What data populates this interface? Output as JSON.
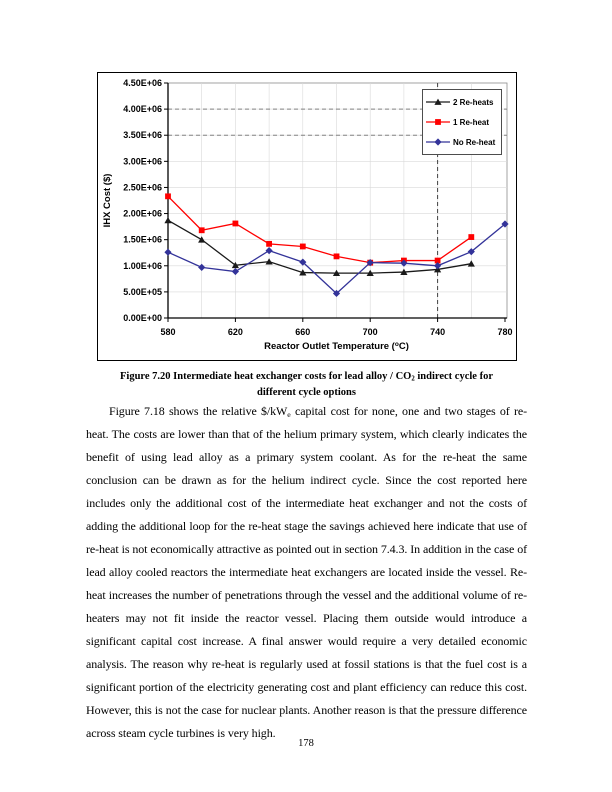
{
  "page": {
    "number": "178"
  },
  "figure": {
    "caption": {
      "line1_segments": [
        {
          "text": "Figure 7.20 Intermediate heat exchanger costs for lead alloy / CO"
        },
        {
          "text": "2",
          "sub": true
        },
        {
          "text": " indirect cycle for"
        }
      ],
      "line2": "different cycle options"
    }
  },
  "chart_data": {
    "type": "line",
    "title": "",
    "ylabel": "IHX Cost ($)",
    "xlabel_segments": [
      {
        "text": "Reactor Outlet Temperature ("
      },
      {
        "text": "o",
        "sup": true
      },
      {
        "text": "C)"
      }
    ],
    "xlim": [
      580,
      780
    ],
    "ylim": [
      0,
      4500000
    ],
    "x_major_ticks": [
      580,
      620,
      660,
      700,
      740,
      780
    ],
    "x_minor_grid_step": 20,
    "y_tick_step": 500000,
    "y_tick_labels": [
      "0.00E+00",
      "5.00E+05",
      "1.00E+06",
      "1.50E+06",
      "2.00E+06",
      "2.50E+06",
      "3.00E+06",
      "3.50E+06",
      "4.00E+06",
      "4.50E+06"
    ],
    "dashed_horizontal_lines": [
      3500000,
      4000000
    ],
    "dashed_vertical_lines": [
      740
    ],
    "grid": "light-minor-grid-plus-dashed-reference-lines",
    "legend_position": "top-right",
    "colors": {
      "grid_light": "#d9d9d9",
      "grid_dashed": "#808080",
      "axis": "#000000",
      "plot_border": "#8c8c8c"
    },
    "series": [
      {
        "name": "2 Re-heats",
        "color": "#1a1a1a",
        "marker": "triangle",
        "x": [
          580,
          600,
          620,
          640,
          660,
          680,
          700,
          720,
          740,
          760
        ],
        "values": [
          1870000,
          1500000,
          1010000,
          1080000,
          870000,
          860000,
          860000,
          880000,
          930000,
          1040000
        ]
      },
      {
        "name": "1 Re-heat",
        "color": "#ff0000",
        "marker": "square",
        "x": [
          580,
          600,
          620,
          640,
          660,
          680,
          700,
          720,
          740,
          760
        ],
        "values": [
          2330000,
          1680000,
          1810000,
          1420000,
          1370000,
          1180000,
          1060000,
          1100000,
          1100000,
          1550000
        ]
      },
      {
        "name": "No Re-heat",
        "color": "#333399",
        "marker": "diamond",
        "x": [
          580,
          600,
          620,
          640,
          660,
          680,
          700,
          720,
          740,
          760,
          780
        ],
        "values": [
          1260000,
          970000,
          890000,
          1290000,
          1070000,
          470000,
          1060000,
          1050000,
          1000000,
          1270000,
          1800000
        ]
      }
    ]
  },
  "body": {
    "paragraph_segments": [
      {
        "text": "Figure 7.18 shows the relative $/kW"
      },
      {
        "text": "e",
        "sub": true
      },
      {
        "text": " capital cost for none, one and two stages of re-heat.  The costs are lower than that of the helium primary system, which clearly indicates the benefit of using lead alloy as a primary system coolant.  As for the re-heat the same conclusion can be drawn as for the helium indirect cycle.  Since the cost reported here includes only the additional cost of the intermediate heat exchanger and not the costs of adding the additional loop for the re-heat stage the savings achieved here indicate that use of re-heat is not economically attractive as pointed out in section 7.4.3.  In addition in the case of lead alloy cooled reactors the intermediate heat exchangers are located inside the vessel.  Re-heat increases the number of penetrations through the vessel and the additional volume of re-heaters may not fit inside the reactor vessel.  Placing them outside would introduce a significant capital cost increase.  A final answer would require a very detailed economic analysis.  The reason why re-heat is regularly used at fossil stations is that the fuel cost is a significant portion of the electricity generating cost and plant efficiency can reduce this cost.  However, this is not the case for nuclear plants.  Another reason is that the pressure difference across steam cycle turbines is very high."
      }
    ]
  }
}
